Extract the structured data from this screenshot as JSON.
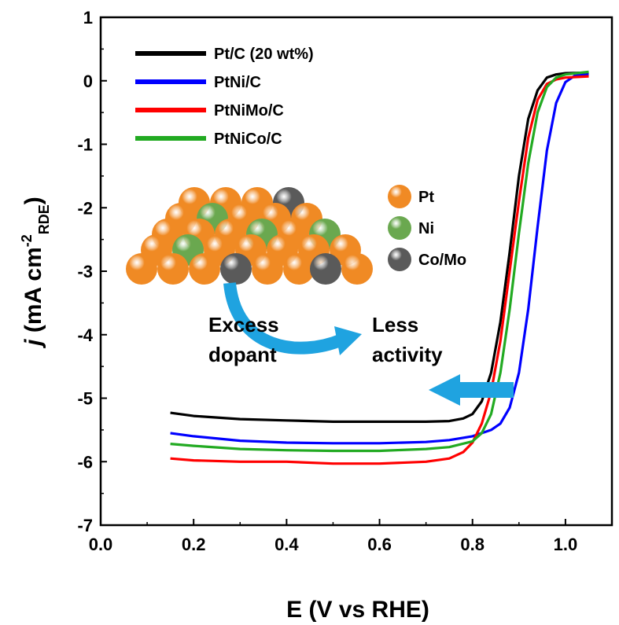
{
  "chart_data": {
    "type": "line",
    "xlabel": "E (V vs RHE)",
    "ylabel": {
      "italic": "j",
      "main": " (mA cm",
      "sup": "-2",
      "sub": "RDE",
      "end": ")"
    },
    "xlim": [
      0.0,
      1.1
    ],
    "ylim": [
      -7,
      1
    ],
    "xticks": [
      "0.0",
      "0.2",
      "0.4",
      "0.6",
      "0.8",
      "1.0"
    ],
    "yticks": [
      "1",
      "0",
      "-1",
      "-2",
      "-3",
      "-4",
      "-5",
      "-6",
      "-7"
    ],
    "legend_position": "top-left",
    "series": [
      {
        "name": "Pt/C (20 wt%)",
        "color": "#000000",
        "points": [
          [
            0.15,
            -5.23
          ],
          [
            0.2,
            -5.28
          ],
          [
            0.3,
            -5.33
          ],
          [
            0.4,
            -5.35
          ],
          [
            0.5,
            -5.37
          ],
          [
            0.6,
            -5.37
          ],
          [
            0.7,
            -5.37
          ],
          [
            0.75,
            -5.36
          ],
          [
            0.78,
            -5.32
          ],
          [
            0.8,
            -5.25
          ],
          [
            0.82,
            -5.05
          ],
          [
            0.84,
            -4.6
          ],
          [
            0.86,
            -3.8
          ],
          [
            0.88,
            -2.7
          ],
          [
            0.9,
            -1.5
          ],
          [
            0.92,
            -0.6
          ],
          [
            0.94,
            -0.15
          ],
          [
            0.96,
            0.05
          ],
          [
            0.98,
            0.1
          ],
          [
            1.0,
            0.12
          ],
          [
            1.05,
            0.13
          ]
        ]
      },
      {
        "name": "PtNi/C",
        "color": "#0000ff",
        "points": [
          [
            0.15,
            -5.55
          ],
          [
            0.2,
            -5.6
          ],
          [
            0.3,
            -5.67
          ],
          [
            0.4,
            -5.7
          ],
          [
            0.5,
            -5.71
          ],
          [
            0.6,
            -5.71
          ],
          [
            0.7,
            -5.69
          ],
          [
            0.75,
            -5.66
          ],
          [
            0.8,
            -5.6
          ],
          [
            0.84,
            -5.5
          ],
          [
            0.86,
            -5.4
          ],
          [
            0.88,
            -5.15
          ],
          [
            0.9,
            -4.6
          ],
          [
            0.92,
            -3.6
          ],
          [
            0.94,
            -2.3
          ],
          [
            0.96,
            -1.1
          ],
          [
            0.98,
            -0.35
          ],
          [
            1.0,
            -0.02
          ],
          [
            1.02,
            0.08
          ],
          [
            1.05,
            0.1
          ]
        ]
      },
      {
        "name": "PtNiMo/C",
        "color": "#ff0000",
        "points": [
          [
            0.15,
            -5.95
          ],
          [
            0.2,
            -5.98
          ],
          [
            0.3,
            -6.0
          ],
          [
            0.4,
            -6.0
          ],
          [
            0.5,
            -6.03
          ],
          [
            0.6,
            -6.03
          ],
          [
            0.7,
            -6.0
          ],
          [
            0.75,
            -5.95
          ],
          [
            0.78,
            -5.85
          ],
          [
            0.8,
            -5.7
          ],
          [
            0.82,
            -5.4
          ],
          [
            0.84,
            -4.9
          ],
          [
            0.86,
            -4.1
          ],
          [
            0.88,
            -3.0
          ],
          [
            0.9,
            -1.9
          ],
          [
            0.92,
            -0.9
          ],
          [
            0.94,
            -0.3
          ],
          [
            0.96,
            -0.05
          ],
          [
            0.98,
            0.02
          ],
          [
            1.0,
            0.05
          ],
          [
            1.05,
            0.07
          ]
        ]
      },
      {
        "name": "PtNiCo/C",
        "color": "#22aa22",
        "points": [
          [
            0.15,
            -5.72
          ],
          [
            0.2,
            -5.75
          ],
          [
            0.3,
            -5.8
          ],
          [
            0.4,
            -5.82
          ],
          [
            0.5,
            -5.83
          ],
          [
            0.6,
            -5.83
          ],
          [
            0.7,
            -5.8
          ],
          [
            0.75,
            -5.77
          ],
          [
            0.8,
            -5.68
          ],
          [
            0.82,
            -5.55
          ],
          [
            0.84,
            -5.25
          ],
          [
            0.86,
            -4.6
          ],
          [
            0.88,
            -3.6
          ],
          [
            0.9,
            -2.4
          ],
          [
            0.92,
            -1.3
          ],
          [
            0.94,
            -0.5
          ],
          [
            0.96,
            -0.1
          ],
          [
            0.98,
            0.05
          ],
          [
            1.0,
            0.1
          ],
          [
            1.05,
            0.14
          ]
        ]
      }
    ],
    "inset": {
      "key": [
        {
          "label": "Pt",
          "color": "#f08a24"
        },
        {
          "label": "Ni",
          "color": "#6aa84f"
        },
        {
          "label": "Co/Mo",
          "color": "#5a5a5a"
        }
      ],
      "annotation_left": [
        "Excess",
        "dopant"
      ],
      "annotation_right": [
        "Less",
        "activity"
      ],
      "arrow_color": "#1fa3e0"
    }
  }
}
